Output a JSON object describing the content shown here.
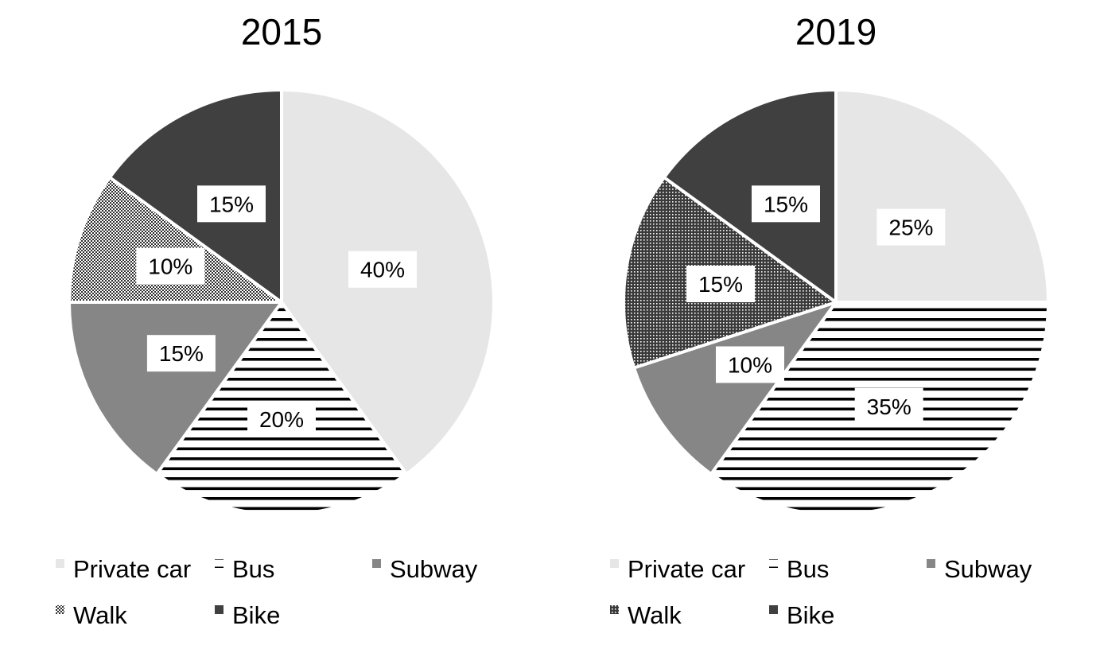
{
  "chart_data": [
    {
      "type": "pie",
      "title": "2015",
      "categories": [
        "Private car",
        "Bus",
        "Subway",
        "Walk",
        "Bike"
      ],
      "values": [
        40,
        20,
        15,
        10,
        15
      ],
      "labels": [
        "40%",
        "20%",
        "15%",
        "10%",
        "15%"
      ],
      "fills": [
        "solid-light",
        "horizontal-lines",
        "solid-mid",
        "checker-dense",
        "solid-dark"
      ],
      "legend_position": "bottom"
    },
    {
      "type": "pie",
      "title": "2019",
      "categories": [
        "Private car",
        "Bus",
        "Subway",
        "Walk",
        "Bike"
      ],
      "values": [
        25,
        35,
        10,
        15,
        15
      ],
      "labels": [
        "25%",
        "35%",
        "10%",
        "15%",
        "15%"
      ],
      "fills": [
        "solid-light",
        "horizontal-lines",
        "solid-mid",
        "dots-dense",
        "solid-dark"
      ],
      "legend_position": "bottom"
    }
  ],
  "colors": {
    "private_car": "#e6e6e6",
    "bus_line": "#000000",
    "subway": "#868686",
    "walk": "#3a3a3a",
    "bike": "#404040",
    "separator": "#ffffff",
    "label_bg": "#ffffff",
    "text": "#000000"
  }
}
